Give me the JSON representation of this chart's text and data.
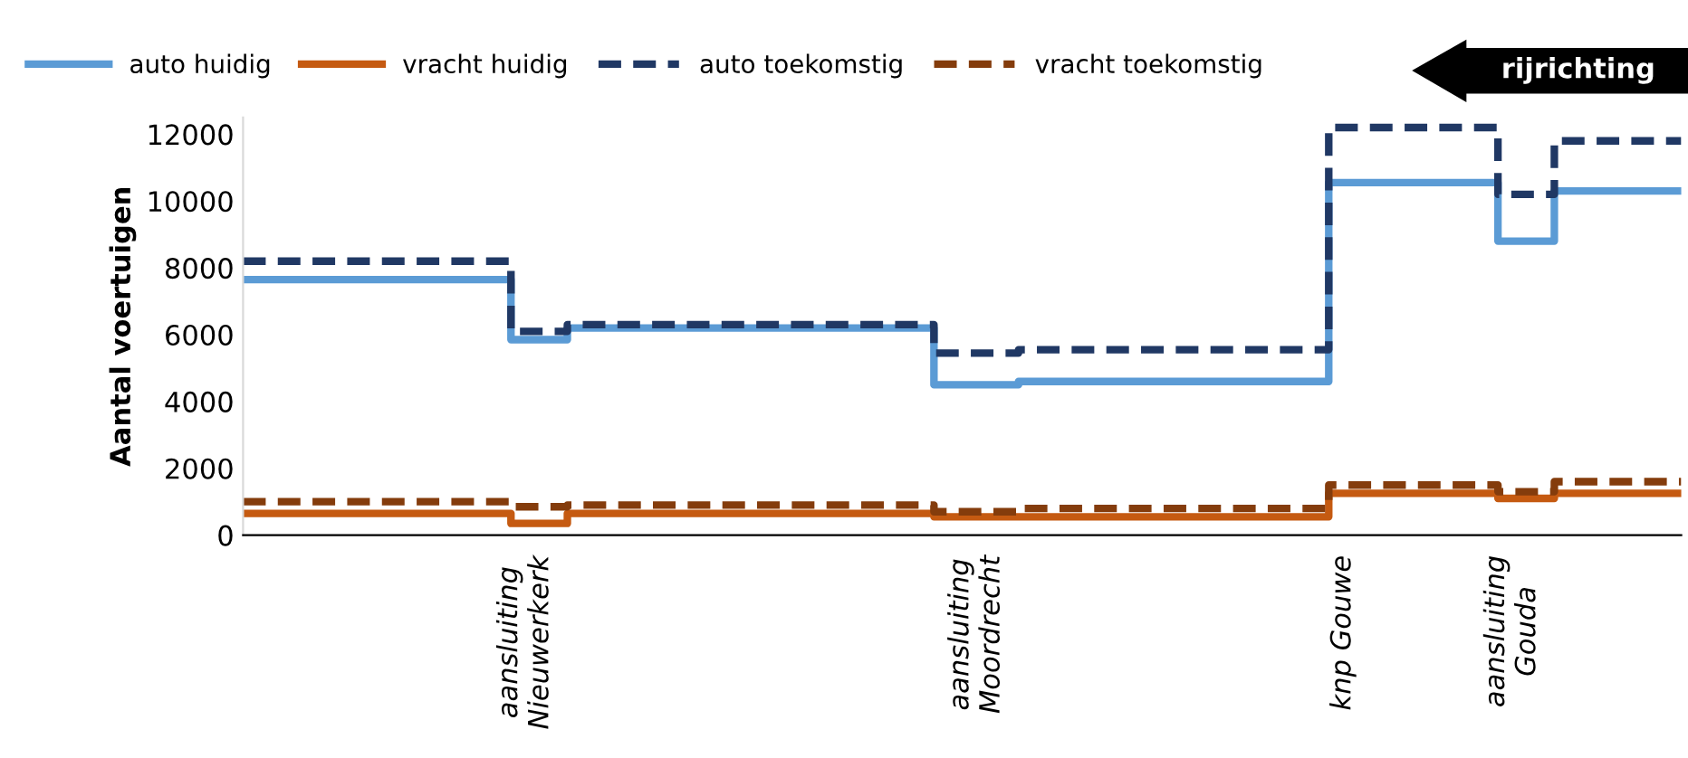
{
  "chart_data": {
    "type": "step",
    "ylabel": "Aantal voertuigen",
    "categories": [
      null,
      null,
      null,
      null,
      null,
      null,
      null,
      null,
      null,
      null,
      "aansluiting\nNieuwerkerk",
      null,
      null,
      null,
      null,
      null,
      null,
      null,
      null,
      null,
      null,
      null,
      null,
      null,
      null,
      null,
      "aansluiting\nMoordrecht",
      null,
      null,
      null,
      null,
      null,
      null,
      null,
      null,
      null,
      null,
      null,
      null,
      "knp Gouwe",
      null,
      null,
      null,
      null,
      null,
      "aansluiting\nGouda",
      null,
      null,
      null,
      null,
      null,
      null
    ],
    "series": [
      {
        "name": "auto huidig",
        "color": "#5b9bd5",
        "line_style": "solid",
        "values": [
          7650,
          7650,
          7650,
          7650,
          7650,
          7650,
          7650,
          7650,
          7650,
          7650,
          5850,
          5850,
          6200,
          6200,
          6200,
          6200,
          6200,
          6200,
          6200,
          6200,
          6200,
          6200,
          6200,
          6200,
          6200,
          4500,
          4500,
          4500,
          4600,
          4600,
          4600,
          4600,
          4600,
          4600,
          4600,
          4600,
          4600,
          4600,
          4600,
          10550,
          10550,
          10550,
          10550,
          10550,
          10550,
          8800,
          8800,
          10300,
          10300,
          10300,
          10300,
          10300
        ]
      },
      {
        "name": "vracht huidig",
        "color": "#c55a11",
        "line_style": "solid",
        "values": [
          650,
          650,
          650,
          650,
          650,
          650,
          650,
          650,
          650,
          650,
          350,
          350,
          650,
          650,
          650,
          650,
          650,
          650,
          650,
          650,
          650,
          650,
          650,
          650,
          650,
          550,
          550,
          550,
          550,
          550,
          550,
          550,
          550,
          550,
          550,
          550,
          550,
          550,
          550,
          1250,
          1250,
          1250,
          1250,
          1250,
          1250,
          1100,
          1100,
          1250,
          1250,
          1250,
          1250,
          1250
        ]
      },
      {
        "name": "auto toekomstig",
        "color": "#203864",
        "line_style": "dashed",
        "values": [
          8200,
          8200,
          8200,
          8200,
          8200,
          8200,
          8200,
          8200,
          8200,
          8200,
          6100,
          6100,
          6300,
          6300,
          6300,
          6300,
          6300,
          6300,
          6300,
          6300,
          6300,
          6300,
          6300,
          6300,
          6300,
          5450,
          5450,
          5450,
          5550,
          5550,
          5550,
          5550,
          5550,
          5550,
          5550,
          5550,
          5550,
          5550,
          5550,
          12200,
          12200,
          12200,
          12200,
          12200,
          12200,
          10200,
          10200,
          11800,
          11800,
          11800,
          11800,
          11800
        ]
      },
      {
        "name": "vracht toekomstig",
        "color": "#843c0c",
        "line_style": "dashed",
        "values": [
          1000,
          1000,
          1000,
          1000,
          1000,
          1000,
          1000,
          1000,
          1000,
          1000,
          850,
          850,
          900,
          900,
          900,
          900,
          900,
          900,
          900,
          900,
          900,
          900,
          900,
          900,
          900,
          700,
          700,
          700,
          800,
          800,
          800,
          800,
          800,
          800,
          800,
          800,
          800,
          800,
          800,
          1500,
          1500,
          1500,
          1500,
          1500,
          1500,
          1300,
          1300,
          1600,
          1600,
          1600,
          1600,
          1600
        ]
      }
    ],
    "ylim": [
      0,
      12500
    ],
    "yticks": [
      0,
      2000,
      4000,
      6000,
      8000,
      10000,
      12000
    ],
    "annotations": [
      "rijrichting"
    ],
    "grid": false,
    "legend": "top"
  }
}
